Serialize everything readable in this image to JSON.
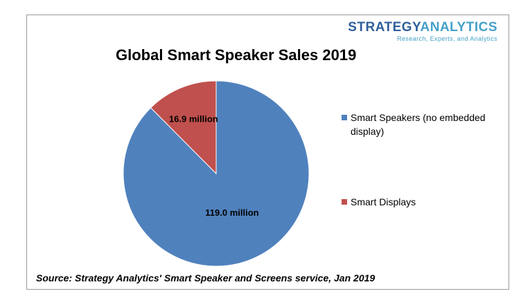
{
  "brand": {
    "name_part1": "STRATEGY",
    "name_part2": "ANALYTICS",
    "tagline": "Research, Experts, and Analytics"
  },
  "chart_data": {
    "type": "pie",
    "title": "Global Smart Speaker Sales 2019",
    "unit": "million",
    "slices": [
      {
        "name": "Smart Speakers (no embedded display)",
        "value": 119.0,
        "label": "119.0 million",
        "color": "#4f81bd"
      },
      {
        "name": "Smart Displays",
        "value": 16.9,
        "label": "16.9 million",
        "color": "#c0504d"
      }
    ],
    "legend_position": "right"
  },
  "source": "Source: Strategy Analytics' Smart Speaker and Screens service, Jan 2019"
}
